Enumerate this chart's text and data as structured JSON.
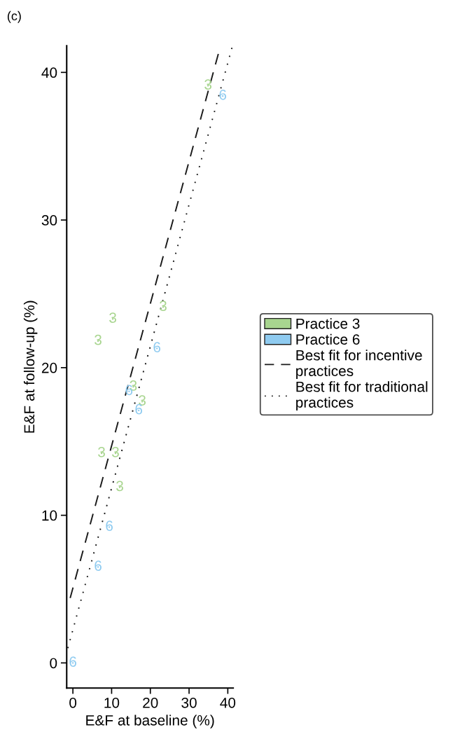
{
  "chart_data": {
    "type": "scatter",
    "title": "(c)",
    "xlabel": "E&F at baseline (%)",
    "ylabel": "E&F at follow-up (%)",
    "xlim": [
      -1.6,
      41.4
    ],
    "ylim": [
      -1.7,
      41.8
    ],
    "xticks": [
      0,
      10,
      20,
      30,
      40
    ],
    "yticks": [
      0,
      10,
      20,
      30,
      40
    ],
    "grid": false,
    "legend": "right",
    "series": [
      {
        "name": "Practice 3",
        "color": "#a8d58f",
        "x": [
          34.9,
          10.3,
          6.5,
          23.3,
          15.6,
          17.9,
          7.4,
          11.0,
          12.1
        ],
        "values": [
          39.1,
          23.3,
          21.8,
          24.1,
          18.7,
          17.7,
          14.2,
          14.2,
          11.9
        ]
      },
      {
        "name": "Practice 6",
        "color": "#8fcbf0",
        "x": [
          38.7,
          21.7,
          14.5,
          17.0,
          9.4,
          6.5,
          0
        ],
        "values": [
          38.4,
          21.3,
          18.4,
          17.1,
          9.2,
          6.5,
          0
        ]
      },
      {
        "name": "Best fit for incentive\npractices",
        "type": "line",
        "line_style": "dashed",
        "color": "#1a1a1a",
        "x": [
          -0.7,
          37.6
        ],
        "values": [
          4.4,
          41.3
        ]
      },
      {
        "name": "Best fit for traditional\npractices",
        "type": "line",
        "line_style": "dotted",
        "color": "#1a1a1a",
        "x": [
          -1.3,
          41.1
        ],
        "values": [
          1.0,
          41.7
        ]
      }
    ],
    "annotations": [
      {
        "text": "3",
        "x": 34.9,
        "y": 39.1
      },
      {
        "text": "3",
        "x": 10.3,
        "y": 23.3
      },
      {
        "text": "3",
        "x": 6.5,
        "y": 21.8
      },
      {
        "text": "3",
        "x": 23.3,
        "y": 24.1
      },
      {
        "text": "3",
        "x": 15.6,
        "y": 18.7
      },
      {
        "text": "3",
        "x": 17.9,
        "y": 17.7
      },
      {
        "text": "3",
        "x": 7.4,
        "y": 14.2
      },
      {
        "text": "3",
        "x": 11.0,
        "y": 14.2
      },
      {
        "text": "3",
        "x": 12.1,
        "y": 11.9
      },
      {
        "text": "6",
        "x": 38.7,
        "y": 38.4
      },
      {
        "text": "6",
        "x": 21.7,
        "y": 21.3
      },
      {
        "text": "6",
        "x": 14.5,
        "y": 18.4
      },
      {
        "text": "6",
        "x": 17.0,
        "y": 17.1
      },
      {
        "text": "6",
        "x": 9.4,
        "y": 9.2
      },
      {
        "text": "6",
        "x": 6.5,
        "y": 6.5
      },
      {
        "text": "6",
        "x": 0,
        "y": 0
      }
    ]
  }
}
